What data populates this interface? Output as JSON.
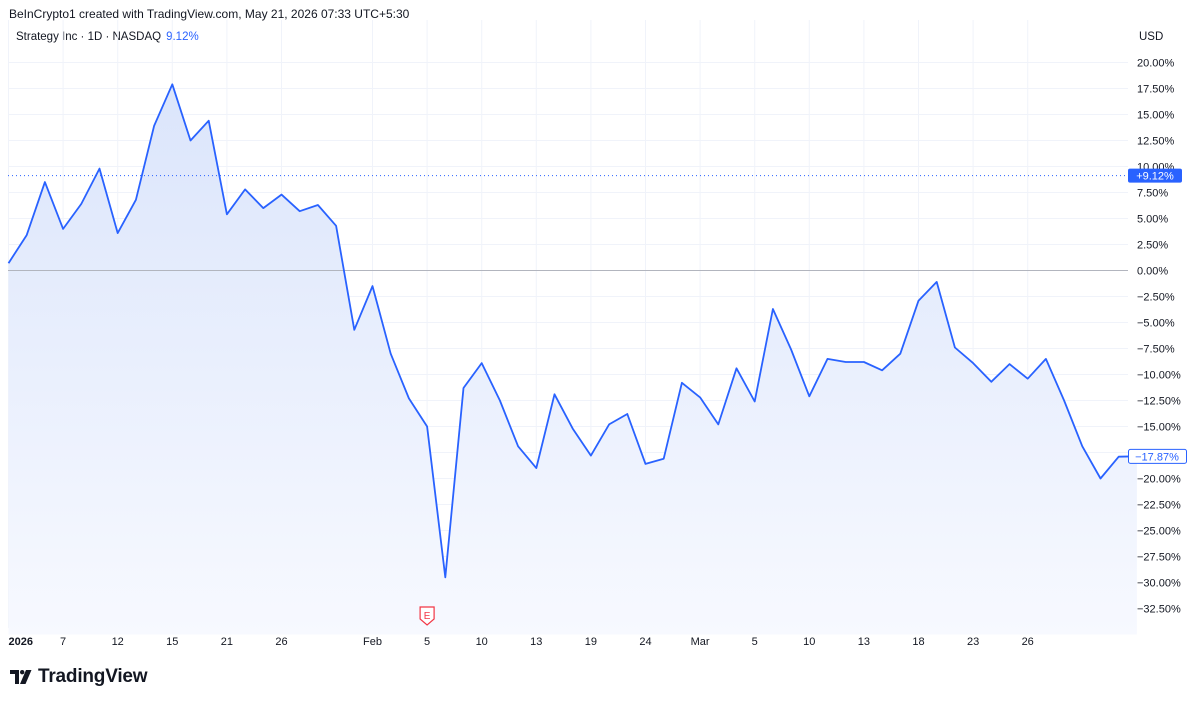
{
  "caption": "BeInCrypto1 created with TradingView.com, May 21, 2026 07:33 UTC+5:30",
  "legend": {
    "symbol": "Strategy Inc · 1D · NASDAQ",
    "change": "9.12%"
  },
  "currency": "USD",
  "brand": "TradingView",
  "colors": {
    "line": "#2962ff",
    "area_top": "#dbe5fb",
    "area_bottom": "#f7f9ff",
    "zero_line": "#b2b5be",
    "grid": "#f0f3fa",
    "accent": "#2962ff"
  },
  "chart_data": {
    "type": "area",
    "ylabel": "USD",
    "ylim": [
      -35,
      22
    ],
    "yticks": [
      {
        "v": 20,
        "label": "20.00%"
      },
      {
        "v": 17.5,
        "label": "17.50%"
      },
      {
        "v": 15,
        "label": "15.00%"
      },
      {
        "v": 12.5,
        "label": "12.50%"
      },
      {
        "v": 10,
        "label": "10.00%"
      },
      {
        "v": 7.5,
        "label": "7.50%"
      },
      {
        "v": 5,
        "label": "5.00%"
      },
      {
        "v": 2.5,
        "label": "2.50%"
      },
      {
        "v": 0,
        "label": "0.00%"
      },
      {
        "v": -2.5,
        "label": "−2.50%"
      },
      {
        "v": -5,
        "label": "−5.00%"
      },
      {
        "v": -7.5,
        "label": "−7.50%"
      },
      {
        "v": -10,
        "label": "−10.00%"
      },
      {
        "v": -12.5,
        "label": "−12.50%"
      },
      {
        "v": -15,
        "label": "−15.00%"
      },
      {
        "v": -17.5,
        "label": "−17.50%"
      },
      {
        "v": -20,
        "label": "−20.00%"
      },
      {
        "v": -22.5,
        "label": "−22.50%"
      },
      {
        "v": -25,
        "label": "−25.00%"
      },
      {
        "v": -27.5,
        "label": "−27.50%"
      },
      {
        "v": -30,
        "label": "−30.00%"
      },
      {
        "v": -32.5,
        "label": "−32.50%"
      }
    ],
    "xticks": [
      {
        "i": 0,
        "label": "2026",
        "bold": true
      },
      {
        "i": 3,
        "label": "7"
      },
      {
        "i": 6,
        "label": "12"
      },
      {
        "i": 9,
        "label": "15"
      },
      {
        "i": 12,
        "label": "21"
      },
      {
        "i": 15,
        "label": "26"
      },
      {
        "i": 20,
        "label": "Feb"
      },
      {
        "i": 23,
        "label": "5"
      },
      {
        "i": 26,
        "label": "10"
      },
      {
        "i": 29,
        "label": "13"
      },
      {
        "i": 32,
        "label": "19"
      },
      {
        "i": 35,
        "label": "24"
      },
      {
        "i": 38,
        "label": "Mar"
      },
      {
        "i": 41,
        "label": "5"
      },
      {
        "i": 44,
        "label": "10"
      },
      {
        "i": 47,
        "label": "13"
      },
      {
        "i": 50,
        "label": "18"
      },
      {
        "i": 53,
        "label": "23"
      },
      {
        "i": 56,
        "label": "26"
      }
    ],
    "values": [
      0.7,
      3.4,
      8.5,
      4.0,
      6.4,
      9.8,
      3.6,
      6.8,
      13.9,
      17.9,
      12.5,
      14.4,
      5.4,
      7.8,
      6.0,
      7.3,
      5.7,
      6.3,
      4.3,
      -5.7,
      -1.5,
      -8.0,
      -12.3,
      -15.0,
      -29.5,
      -11.3,
      -8.9,
      -12.5,
      -16.9,
      -19.0,
      -11.9,
      -15.2,
      -17.8,
      -14.8,
      -13.8,
      -18.6,
      -18.1,
      -10.8,
      -12.2,
      -14.8,
      -9.4,
      -12.6,
      -3.7,
      -7.6,
      -12.1,
      -8.5,
      -8.8,
      -8.8,
      -9.6,
      -8.0,
      -2.9,
      -1.1,
      -7.4,
      -8.9,
      -10.7,
      -9.0,
      -10.4,
      -8.5,
      -12.5,
      -16.9,
      -20.0,
      -17.9,
      -17.87
    ],
    "last_label": "−17.87%",
    "ref_label": "+9.12%",
    "ref_value": 9.12,
    "event_marker": {
      "i": 23,
      "label": "E"
    }
  }
}
